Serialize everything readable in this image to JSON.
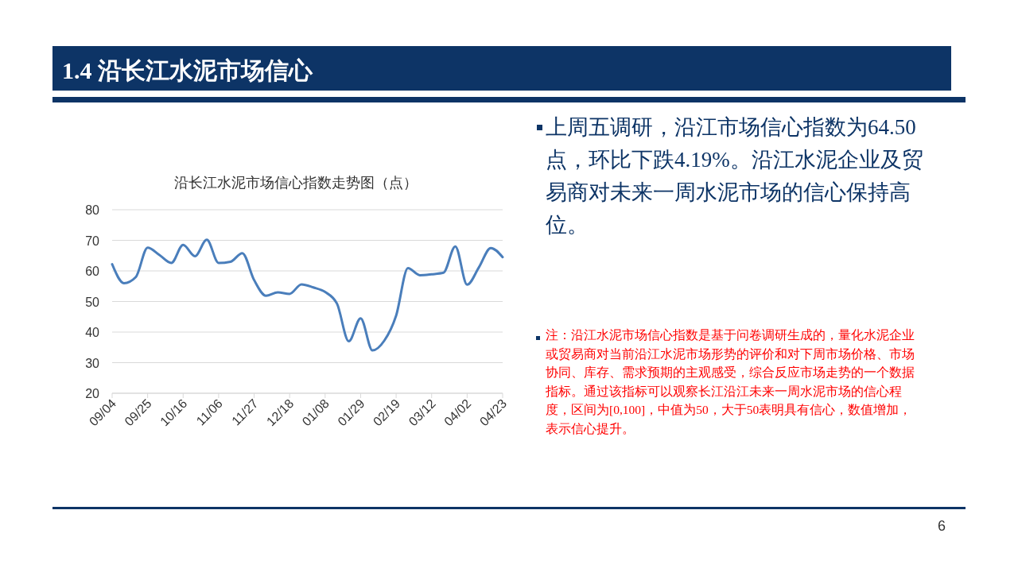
{
  "chart_data": {
    "type": "line",
    "title": "1.4 沿长江水泥市场信心",
    "subtitle": "沿长江水泥市场信心指数走势图（点）",
    "categories": [
      "09/04",
      null,
      null,
      "09/25",
      null,
      null,
      "10/16",
      null,
      null,
      "11/06",
      null,
      null,
      "11/27",
      null,
      null,
      "12/18",
      null,
      null,
      "01/08",
      null,
      null,
      "01/29",
      null,
      null,
      "02/19",
      null,
      null,
      "03/12",
      null,
      null,
      "04/02",
      null,
      null,
      "04/23"
    ],
    "series": [
      {
        "color": "#4a7ebb",
        "values": [
          62.2,
          56,
          58,
          67.6,
          65.2,
          62.6,
          68.5,
          64.8,
          70.2,
          62.6,
          63,
          65.8,
          57,
          51.9,
          53,
          52.5,
          55.6,
          54.6,
          53.1,
          49.3,
          37,
          44.5,
          34,
          37.2,
          45.4,
          60.9,
          58.6,
          58.9,
          59.4,
          68,
          55.5,
          61.2,
          67.5,
          64.5
        ]
      }
    ],
    "ylim": [
      20,
      80
    ],
    "yticks": [
      20,
      30,
      40,
      50,
      60,
      70,
      80
    ],
    "grid": "y",
    "marker": "none",
    "line_style": "solid",
    "annotations": [
      "上周五调研，沿江市场信心指数为64.50点，环比下跌4.19%。沿江水泥企业及贸易商对未来一周水泥市场的信心保持高位。",
      "注：沿江水泥市场信心指数是基于问卷调研生成的，量化水泥企业或贸易商对当前沿江水泥市场形势的评价和对下周市场价格、市场协同、库存、需求预期的主观感受，综合反应市场走势的一个数据指标。通过该指标可以观察长江沿江未来一周水泥市场的信心程度，区间为[0,100]，中值为50，大于50表明具有信心，数值增加，表示信心提升。",
      "6"
    ]
  }
}
